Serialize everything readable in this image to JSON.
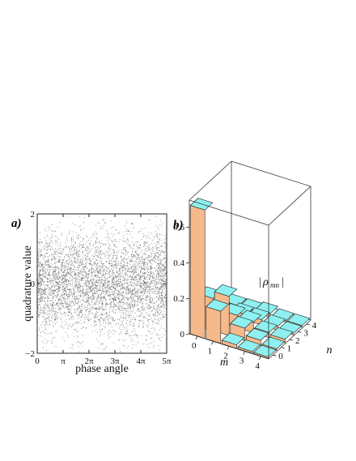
{
  "chart_data": [
    {
      "panel": "a)",
      "type": "scatter",
      "xlabel": "phase angle",
      "ylabel": "quadrature value",
      "xlim": [
        0,
        5
      ],
      "ylim": [
        -2,
        2
      ],
      "xtick_values": [
        0,
        1,
        2,
        3,
        4,
        5
      ],
      "xtick_labels": [
        "0",
        "π",
        "2π",
        "3π",
        "4π",
        "5π"
      ],
      "ytick_values": [
        -2,
        0,
        2
      ],
      "ytick_labels": [
        "−2",
        "0",
        "2"
      ],
      "point_color": "#555555",
      "description_note": "",
      "approx_point_count": 5000
    },
    {
      "panel": "b)",
      "type": "bar3d",
      "legend_label": "|ρmn|",
      "legend_text": {
        "pipe_left": "|",
        "rho": "ρ",
        "subscript": "mn",
        "pipe_right": "|"
      },
      "xlabel": "m",
      "ylabel": "n",
      "m_ticks": [
        "0",
        "1",
        "2",
        "3",
        "4"
      ],
      "n_ticks": [
        "0",
        "1",
        "2",
        "3",
        "4"
      ],
      "zlim": [
        0,
        0.75
      ],
      "z_ticks": [
        "0",
        "0.2",
        "0.4",
        "0.6"
      ],
      "z_tick_values": [
        0,
        0.2,
        0.4,
        0.6
      ],
      "colors": {
        "top": "#8ef0f0",
        "front": "#f6b98c",
        "side": "#9a55f0"
      },
      "values": [
        [
          0.72,
          0.18,
          0.02,
          0.01,
          0.0
        ],
        [
          0.18,
          0.22,
          0.07,
          0.03,
          0.01
        ],
        [
          0.02,
          0.07,
          0.06,
          0.03,
          0.02
        ],
        [
          0.01,
          0.03,
          0.03,
          0.02,
          0.01
        ],
        [
          0.0,
          0.01,
          0.02,
          0.01,
          0.01
        ]
      ]
    }
  ]
}
